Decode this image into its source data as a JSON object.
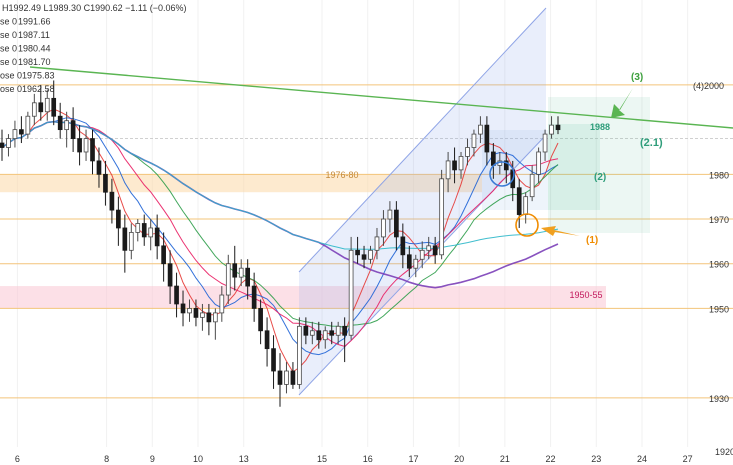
{
  "chart_data": {
    "type": "candlestick",
    "legend_rows": [
      {
        "label": "H1992.49 L1989.30 C1990.62 −1.11 (−0.06%)",
        "color": "#333333"
      },
      {
        "label": "se 0",
        "value": "1991.66",
        "color": "#e53935"
      },
      {
        "label": "se 0",
        "value": "1987.11",
        "color": "#1e63d6"
      },
      {
        "label": "se 0",
        "value": "1980.44",
        "color": "#2e9d4a"
      },
      {
        "label": "se 0",
        "value": "1981.70",
        "color": "#e91e63"
      },
      {
        "label": "ose 0",
        "value": "1975.83",
        "color": "#7b3fb8"
      },
      {
        "label": "ose 0",
        "value": "1962.58",
        "color": "#2bb7c9"
      }
    ],
    "x_ticks": [
      {
        "label": "6",
        "t": 8
      },
      {
        "label": "8",
        "t": 49
      },
      {
        "label": "9",
        "t": 70
      },
      {
        "label": "10",
        "t": 91
      },
      {
        "label": "13",
        "t": 112
      },
      {
        "label": "15",
        "t": 148
      },
      {
        "label": "16",
        "t": 169
      },
      {
        "label": "17",
        "t": 190
      },
      {
        "label": "20",
        "t": 211
      },
      {
        "label": "21",
        "t": 232
      },
      {
        "label": "22",
        "t": 253
      },
      {
        "label": "23",
        "t": 274
      },
      {
        "label": "24",
        "t": 295
      },
      {
        "label": "27",
        "t": 316
      }
    ],
    "y_ticks": [
      1930,
      1950,
      1960,
      1970,
      1980,
      2000
    ],
    "y_tick_labels": [
      "1930",
      "1950",
      "1960",
      "1970",
      "1980",
      "(4)2000"
    ],
    "y_corner_label": "1920",
    "ylim": [
      1919,
      2019
    ],
    "xlim": [
      0,
      318
    ],
    "h_levels": [
      1930,
      1950,
      1960,
      1970,
      1980,
      1988,
      2000
    ],
    "zones": [
      {
        "label": "1976-80",
        "from": 1976,
        "to": 1980,
        "color": "#fbd9a8"
      },
      {
        "label": "1950-55",
        "from": 1950,
        "to": 1955,
        "color": "#f9c6d4"
      }
    ],
    "annotations": [
      {
        "text": "(1)",
        "color": "#f08c00"
      },
      {
        "text": "(2)",
        "color": "#2e9d7a"
      },
      {
        "text": "(2.1)",
        "color": "#2e9d7a"
      },
      {
        "text": "(3)",
        "color": "#3da03d"
      },
      {
        "text": "1988",
        "color": "#2e9d7a"
      }
    ],
    "candles": [
      {
        "o": 1987,
        "h": 1990,
        "c": 1986,
        "l": 1983
      },
      {
        "o": 1986,
        "h": 1989,
        "c": 1988,
        "l": 1984
      },
      {
        "o": 1988,
        "h": 1992,
        "c": 1990,
        "l": 1986
      },
      {
        "o": 1990,
        "h": 1993,
        "c": 1989,
        "l": 1987
      },
      {
        "o": 1989,
        "h": 1994,
        "c": 1993,
        "l": 1988
      },
      {
        "o": 1993,
        "h": 1998,
        "c": 1996,
        "l": 1991
      },
      {
        "o": 1996,
        "h": 2000,
        "c": 1994,
        "l": 1992
      },
      {
        "o": 1994,
        "h": 1999,
        "c": 1997,
        "l": 1992
      },
      {
        "o": 1997,
        "h": 2001,
        "c": 1993,
        "l": 1991
      },
      {
        "o": 1993,
        "h": 1996,
        "c": 1990,
        "l": 1988
      },
      {
        "o": 1990,
        "h": 1994,
        "c": 1992,
        "l": 1986
      },
      {
        "o": 1992,
        "h": 1995,
        "c": 1988,
        "l": 1985
      },
      {
        "o": 1988,
        "h": 1991,
        "c": 1985,
        "l": 1982
      },
      {
        "o": 1985,
        "h": 1990,
        "c": 1988,
        "l": 1983
      },
      {
        "o": 1988,
        "h": 1990,
        "c": 1983,
        "l": 1980
      },
      {
        "o": 1983,
        "h": 1986,
        "c": 1980,
        "l": 1977
      },
      {
        "o": 1980,
        "h": 1983,
        "c": 1976,
        "l": 1973
      },
      {
        "o": 1976,
        "h": 1979,
        "c": 1972,
        "l": 1969
      },
      {
        "o": 1972,
        "h": 1975,
        "c": 1968,
        "l": 1964
      },
      {
        "o": 1968,
        "h": 1971,
        "c": 1963,
        "l": 1958
      },
      {
        "o": 1963,
        "h": 1969,
        "c": 1967,
        "l": 1961
      },
      {
        "o": 1967,
        "h": 1970,
        "c": 1969,
        "l": 1965
      },
      {
        "o": 1969,
        "h": 1971,
        "c": 1966,
        "l": 1964
      },
      {
        "o": 1966,
        "h": 1970,
        "c": 1968,
        "l": 1963
      },
      {
        "o": 1968,
        "h": 1971,
        "c": 1964,
        "l": 1961
      },
      {
        "o": 1964,
        "h": 1967,
        "c": 1960,
        "l": 1956
      },
      {
        "o": 1960,
        "h": 1963,
        "c": 1955,
        "l": 1951
      },
      {
        "o": 1955,
        "h": 1958,
        "c": 1951,
        "l": 1948
      },
      {
        "o": 1951,
        "h": 1954,
        "c": 1949,
        "l": 1946
      },
      {
        "o": 1949,
        "h": 1952,
        "c": 1950,
        "l": 1947
      },
      {
        "o": 1950,
        "h": 1952,
        "c": 1948,
        "l": 1946
      },
      {
        "o": 1948,
        "h": 1951,
        "c": 1949,
        "l": 1945
      },
      {
        "o": 1949,
        "h": 1951,
        "c": 1947,
        "l": 1944
      },
      {
        "o": 1947,
        "h": 1950,
        "c": 1949,
        "l": 1943
      },
      {
        "o": 1949,
        "h": 1955,
        "c": 1953,
        "l": 1947
      },
      {
        "o": 1953,
        "h": 1962,
        "c": 1960,
        "l": 1951
      },
      {
        "o": 1960,
        "h": 1964,
        "c": 1957,
        "l": 1954
      },
      {
        "o": 1957,
        "h": 1961,
        "c": 1959,
        "l": 1955
      },
      {
        "o": 1959,
        "h": 1961,
        "c": 1955,
        "l": 1952
      },
      {
        "o": 1955,
        "h": 1958,
        "c": 1950,
        "l": 1947
      },
      {
        "o": 1950,
        "h": 1952,
        "c": 1945,
        "l": 1942
      },
      {
        "o": 1945,
        "h": 1948,
        "c": 1941,
        "l": 1937
      },
      {
        "o": 1941,
        "h": 1944,
        "c": 1936,
        "l": 1932
      },
      {
        "o": 1936,
        "h": 1940,
        "c": 1933,
        "l": 1928
      },
      {
        "o": 1933,
        "h": 1938,
        "c": 1936,
        "l": 1931
      },
      {
        "o": 1936,
        "h": 1938,
        "c": 1933,
        "l": 1932
      },
      {
        "o": 1933,
        "h": 1948,
        "c": 1946,
        "l": 1932
      },
      {
        "o": 1946,
        "h": 1948,
        "c": 1944,
        "l": 1942
      },
      {
        "o": 1944,
        "h": 1947,
        "c": 1945,
        "l": 1942
      },
      {
        "o": 1945,
        "h": 1947,
        "c": 1943,
        "l": 1941
      },
      {
        "o": 1943,
        "h": 1946,
        "c": 1945,
        "l": 1941
      },
      {
        "o": 1945,
        "h": 1947,
        "c": 1944,
        "l": 1942
      },
      {
        "o": 1944,
        "h": 1947,
        "c": 1946,
        "l": 1942
      },
      {
        "o": 1946,
        "h": 1948,
        "c": 1944,
        "l": 1938
      },
      {
        "o": 1944,
        "h": 1966,
        "c": 1963,
        "l": 1943
      },
      {
        "o": 1963,
        "h": 1966,
        "c": 1962,
        "l": 1960
      },
      {
        "o": 1962,
        "h": 1964,
        "c": 1961,
        "l": 1959
      },
      {
        "o": 1961,
        "h": 1964,
        "c": 1963,
        "l": 1960
      },
      {
        "o": 1963,
        "h": 1968,
        "c": 1966,
        "l": 1961
      },
      {
        "o": 1966,
        "h": 1972,
        "c": 1970,
        "l": 1964
      },
      {
        "o": 1970,
        "h": 1974,
        "c": 1972,
        "l": 1967
      },
      {
        "o": 1972,
        "h": 1974,
        "c": 1966,
        "l": 1963
      },
      {
        "o": 1966,
        "h": 1969,
        "c": 1962,
        "l": 1959
      },
      {
        "o": 1962,
        "h": 1964,
        "c": 1959,
        "l": 1957
      },
      {
        "o": 1959,
        "h": 1962,
        "c": 1961,
        "l": 1957
      },
      {
        "o": 1961,
        "h": 1965,
        "c": 1963,
        "l": 1959
      },
      {
        "o": 1963,
        "h": 1966,
        "c": 1964,
        "l": 1961
      },
      {
        "o": 1964,
        "h": 1966,
        "c": 1962,
        "l": 1960
      },
      {
        "o": 1962,
        "h": 1981,
        "c": 1979,
        "l": 1961
      },
      {
        "o": 1979,
        "h": 1985,
        "c": 1983,
        "l": 1976
      },
      {
        "o": 1983,
        "h": 1986,
        "c": 1981,
        "l": 1978
      },
      {
        "o": 1981,
        "h": 1985,
        "c": 1984,
        "l": 1979
      },
      {
        "o": 1984,
        "h": 1988,
        "c": 1986,
        "l": 1982
      },
      {
        "o": 1986,
        "h": 1990,
        "c": 1989,
        "l": 1984
      },
      {
        "o": 1989,
        "h": 1993,
        "c": 1991,
        "l": 1987
      },
      {
        "o": 1991,
        "h": 1993,
        "c": 1985,
        "l": 1982
      },
      {
        "o": 1985,
        "h": 1987,
        "c": 1982,
        "l": 1979
      },
      {
        "o": 1982,
        "h": 1985,
        "c": 1983,
        "l": 1980
      },
      {
        "o": 1983,
        "h": 1985,
        "c": 1981,
        "l": 1978
      },
      {
        "o": 1981,
        "h": 1983,
        "c": 1977,
        "l": 1974
      },
      {
        "o": 1977,
        "h": 1979,
        "c": 1971,
        "l": 1968
      },
      {
        "o": 1971,
        "h": 1976,
        "c": 1975,
        "l": 1969
      },
      {
        "o": 1975,
        "h": 1982,
        "c": 1980,
        "l": 1974
      },
      {
        "o": 1980,
        "h": 1986,
        "c": 1985,
        "l": 1978
      },
      {
        "o": 1985,
        "h": 1990,
        "c": 1989,
        "l": 1983
      },
      {
        "o": 1989,
        "h": 1993,
        "c": 1991,
        "l": 1988
      },
      {
        "o": 1991,
        "h": 1993,
        "c": 1990,
        "l": 1989
      }
    ],
    "moving_averages": [
      {
        "value": "1991.66",
        "color": "#e53935",
        "period": 5
      },
      {
        "value": "1987.11",
        "color": "#1e63d6",
        "period": 9
      },
      {
        "value": "1980.44",
        "color": "#2e9d4a",
        "period": 20
      },
      {
        "value": "1981.70",
        "color": "#e91e63",
        "period": 14
      },
      {
        "value": "1975.83",
        "color": "#7b3fb8",
        "period": 50
      },
      {
        "value": "1962.58",
        "color": "#2bb7c9",
        "period": 100
      }
    ]
  }
}
